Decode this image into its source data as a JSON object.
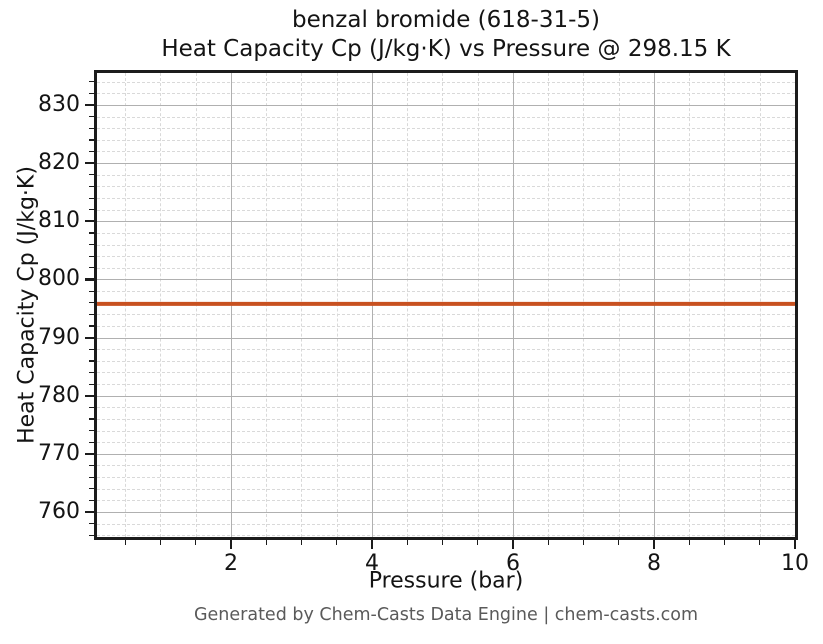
{
  "chart_data": {
    "type": "line",
    "title_line1": "benzal bromide (618-31-5)",
    "title_line2": "Heat Capacity Cp (J/kg·K) vs Pressure @ 298.15 K",
    "xlabel": "Pressure (bar)",
    "ylabel": "Heat Capacity Cp (J/kg·K)",
    "xlim": [
      0.1,
      10
    ],
    "ylim": [
      755.7,
      835.5
    ],
    "x_major_ticks": [
      2,
      4,
      6,
      8,
      10
    ],
    "x_minor_step": 0.5,
    "y_major_ticks": [
      760,
      770,
      780,
      790,
      800,
      810,
      820,
      830
    ],
    "y_minor_step": 2,
    "grid": {
      "major_color": "#b0b0b0",
      "minor_color": "#d9d9d9",
      "minor_style": "dashed"
    },
    "series": [
      {
        "name": "Heat Capacity Cp",
        "color": "#c85120",
        "linewidth": 4,
        "x": [
          0.1,
          1,
          2,
          3,
          4,
          5,
          6,
          7,
          8,
          9,
          10
        ],
        "y": [
          795.8,
          795.8,
          795.8,
          795.8,
          795.8,
          795.8,
          795.8,
          795.8,
          795.8,
          795.8,
          795.8
        ]
      }
    ]
  },
  "footer": {
    "text": "Generated by Chem-Casts Data Engine | chem-casts.com"
  }
}
